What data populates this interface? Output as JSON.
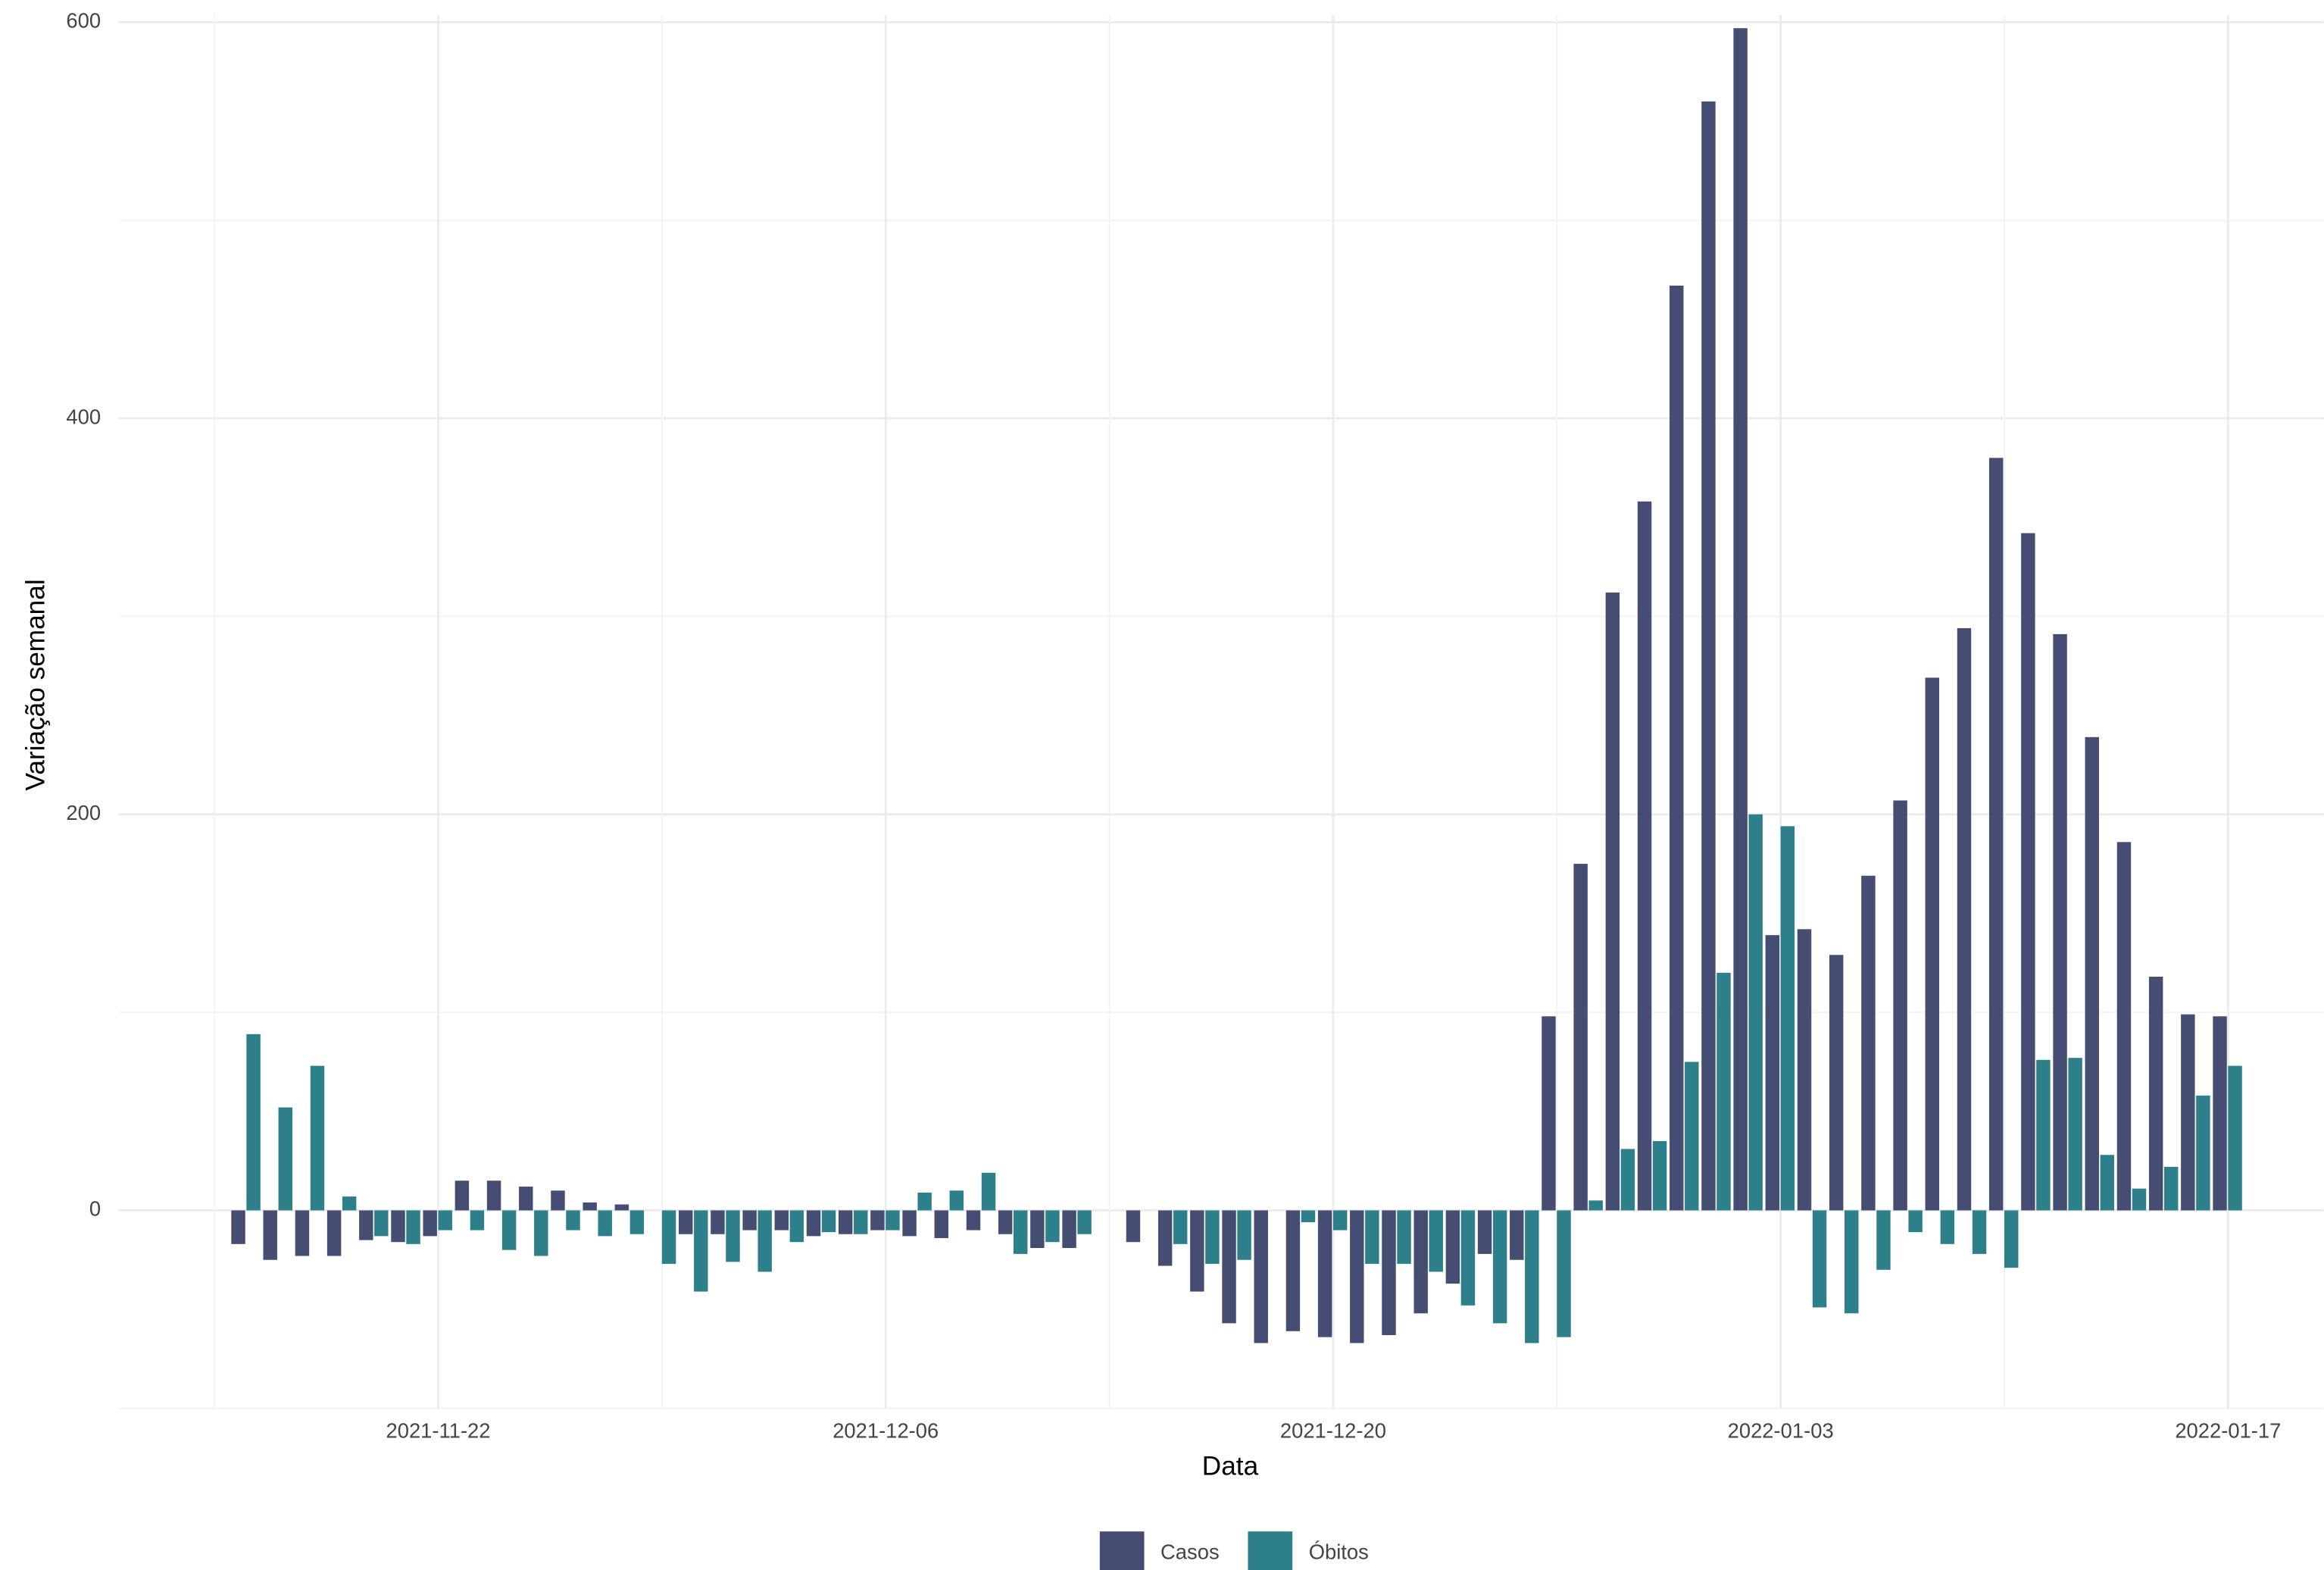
{
  "chart_data": {
    "type": "bar",
    "x_label": "Data",
    "y_label": "Variação semanal",
    "x": [
      "2021-11-16",
      "2021-11-17",
      "2021-11-18",
      "2021-11-19",
      "2021-11-20",
      "2021-11-21",
      "2021-11-22",
      "2021-11-23",
      "2021-11-24",
      "2021-11-25",
      "2021-11-26",
      "2021-11-27",
      "2021-11-28",
      "2021-11-29",
      "2021-11-30",
      "2021-12-01",
      "2021-12-02",
      "2021-12-03",
      "2021-12-04",
      "2021-12-05",
      "2021-12-06",
      "2021-12-07",
      "2021-12-08",
      "2021-12-09",
      "2021-12-10",
      "2021-12-11",
      "2021-12-12",
      "2021-12-13",
      "2021-12-14",
      "2021-12-15",
      "2021-12-16",
      "2021-12-17",
      "2021-12-18",
      "2021-12-19",
      "2021-12-20",
      "2021-12-21",
      "2021-12-22",
      "2021-12-23",
      "2021-12-24",
      "2021-12-25",
      "2021-12-26",
      "2021-12-27",
      "2021-12-28",
      "2021-12-29",
      "2021-12-30",
      "2021-12-31",
      "2022-01-01",
      "2022-01-02",
      "2022-01-03",
      "2022-01-04",
      "2022-01-05",
      "2022-01-06",
      "2022-01-07",
      "2022-01-08",
      "2022-01-09",
      "2022-01-10",
      "2022-01-11",
      "2022-01-12",
      "2022-01-13",
      "2022-01-14",
      "2022-01-15",
      "2022-01-16",
      "2022-01-17"
    ],
    "series": [
      {
        "name": "Casos",
        "color": "#454e72",
        "values": [
          -17,
          -25,
          -23,
          -23,
          -15,
          -16,
          -13,
          15,
          15,
          12,
          10,
          4,
          3,
          0,
          -12,
          -12,
          -10,
          -10,
          -13,
          -12,
          -10,
          -13,
          -14,
          -10,
          -12,
          -19,
          -19,
          0,
          -16,
          -28,
          -41,
          -57,
          -67,
          -61,
          -64,
          -67,
          -63,
          -52,
          -37,
          -22,
          -25,
          98,
          175,
          312,
          358,
          467,
          560,
          597,
          139,
          142,
          129,
          169,
          207,
          269,
          294,
          380,
          342,
          291,
          239,
          186,
          118,
          99,
          98
        ]
      },
      {
        "name": "Óbitos",
        "color": "#2d8089",
        "values": [
          89,
          52,
          73,
          7,
          -13,
          -17,
          -10,
          -10,
          -20,
          -23,
          -10,
          -13,
          -12,
          -27,
          -41,
          -26,
          -31,
          -16,
          -11,
          -12,
          -10,
          9,
          10,
          19,
          -22,
          -16,
          -12,
          0,
          0,
          -17,
          -27,
          -25,
          0,
          -6,
          -10,
          -27,
          -27,
          -31,
          -48,
          -57,
          -67,
          -64,
          5,
          31,
          35,
          75,
          120,
          200,
          194,
          -49,
          -52,
          -30,
          -11,
          -17,
          -22,
          -29,
          76,
          77,
          28,
          11,
          22,
          58,
          73
        ]
      }
    ],
    "xlim": [
      "2021-11-12",
      "2022-01-20"
    ],
    "xticks": [
      "2021-11-22",
      "2021-12-06",
      "2021-12-20",
      "2022-01-03",
      "2022-01-17"
    ],
    "ylim": [
      -100,
      600
    ],
    "yticks": [
      0,
      200,
      400,
      600
    ],
    "grid": true,
    "legend": "bottom"
  }
}
